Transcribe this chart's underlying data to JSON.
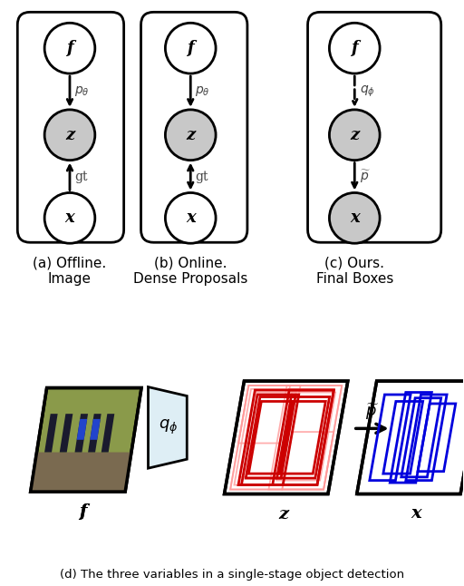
{
  "bg_color": "#ffffff",
  "node_color_white": "#ffffff",
  "node_color_gray": "#c8c8c8",
  "labels": {
    "a_caption1": "(a) Offline.",
    "a_caption2": "Image",
    "b_caption1": "(b) Online.",
    "b_caption2": "Dense Proposals",
    "c_caption1": "(c) Ours.",
    "c_caption2": "Final Boxes",
    "d_caption": "(d) The three variables in a single-stage object detection"
  }
}
